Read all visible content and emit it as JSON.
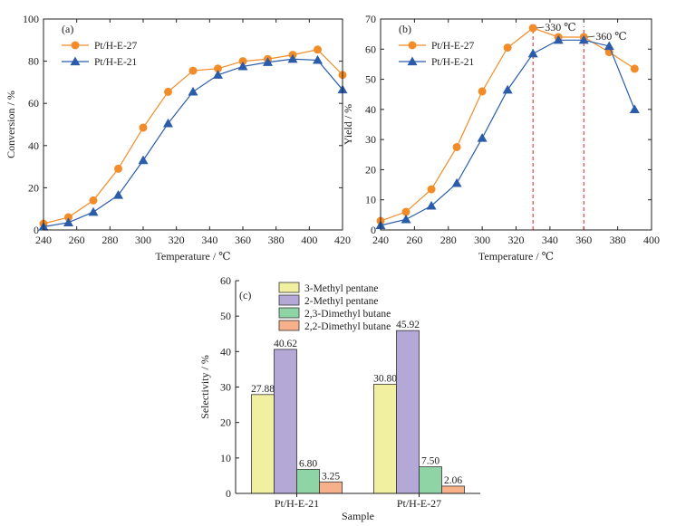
{
  "chart_data": [
    {
      "id": "a",
      "type": "line",
      "panel_label": "(a)",
      "xlabel": "Temperature / ℃",
      "ylabel": "Conversion / %",
      "xlim": [
        240,
        420
      ],
      "ylim": [
        0,
        100
      ],
      "xticks": [
        240,
        260,
        280,
        300,
        320,
        340,
        360,
        380,
        400,
        420
      ],
      "yticks": [
        0,
        20,
        40,
        60,
        80,
        100
      ],
      "legend_position": "top-left",
      "series": [
        {
          "name": "Pt/H-E-27",
          "color": "#F28C28",
          "marker": "circle",
          "x": [
            240,
            255,
            270,
            285,
            300,
            315,
            330,
            345,
            360,
            375,
            390,
            405,
            420
          ],
          "y": [
            3,
            6,
            14,
            29,
            48.5,
            65.5,
            75.5,
            76.5,
            80,
            81,
            83,
            85.5,
            73.5
          ]
        },
        {
          "name": "Pt/H-E-21",
          "color": "#2A5CAA",
          "marker": "triangle",
          "x": [
            240,
            255,
            270,
            285,
            300,
            315,
            330,
            345,
            360,
            375,
            390,
            405,
            420
          ],
          "y": [
            1.5,
            3.5,
            8.5,
            16.5,
            33,
            50.5,
            65.5,
            73.5,
            77.5,
            79.5,
            81,
            80.5,
            66.5
          ]
        }
      ]
    },
    {
      "id": "b",
      "type": "line",
      "panel_label": "(b)",
      "xlabel": "Temperature / ℃",
      "ylabel": "Yield / %",
      "xlim": [
        240,
        400
      ],
      "ylim": [
        0,
        70
      ],
      "xticks": [
        240,
        260,
        280,
        300,
        320,
        340,
        360,
        380,
        400
      ],
      "yticks": [
        0,
        10,
        20,
        30,
        40,
        50,
        60,
        70
      ],
      "legend_position": "top-left",
      "series": [
        {
          "name": "Pt/H-E-27",
          "color": "#F28C28",
          "marker": "circle",
          "x": [
            240,
            255,
            270,
            285,
            300,
            315,
            330,
            345,
            360,
            375,
            390
          ],
          "y": [
            3,
            6,
            13.5,
            27.5,
            46,
            60.5,
            67,
            64,
            64,
            59,
            53.5
          ]
        },
        {
          "name": "Pt/H-E-21",
          "color": "#2A5CAA",
          "marker": "triangle",
          "x": [
            240,
            255,
            270,
            285,
            300,
            315,
            330,
            345,
            360,
            375,
            390
          ],
          "y": [
            1.5,
            3.5,
            8,
            15.5,
            30.5,
            46.5,
            58.5,
            63,
            63,
            61,
            40
          ]
        }
      ],
      "vlines": [
        {
          "x": 330,
          "label": "330 ℃",
          "color": "#E02020"
        },
        {
          "x": 360,
          "label": "360 ℃",
          "color": "#E02020"
        }
      ]
    },
    {
      "id": "c",
      "type": "bar",
      "panel_label": "(c)",
      "xlabel": "Sample",
      "ylabel": "Selectivity / %",
      "ylim": [
        0,
        60
      ],
      "yticks": [
        0,
        10,
        20,
        30,
        40,
        50,
        60
      ],
      "categories": [
        "Pt/H-E-21",
        "Pt/H-E-27"
      ],
      "legend_position": "top-left",
      "series": [
        {
          "name": "3-Methyl pentane",
          "color": "#F0F0A0",
          "values": [
            27.88,
            30.8
          ],
          "labels": [
            "27.88",
            "30.80"
          ]
        },
        {
          "name": "2-Methyl pentane",
          "color": "#B3A8D6",
          "values": [
            40.62,
            45.92
          ],
          "labels": [
            "40.62",
            "45.92"
          ]
        },
        {
          "name": "2,3-Dimethyl butane",
          "color": "#8FD4A4",
          "values": [
            6.8,
            7.5
          ],
          "labels": [
            "6.80",
            "7.50"
          ]
        },
        {
          "name": "2,2-Dimethyl butane",
          "color": "#F7B08A",
          "values": [
            3.25,
            2.06
          ],
          "labels": [
            "3.25",
            "2.06"
          ]
        }
      ]
    }
  ]
}
